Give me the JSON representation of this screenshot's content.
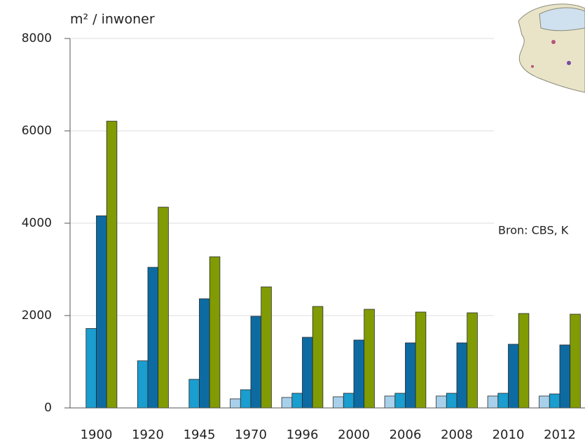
{
  "chart_data": {
    "type": "bar",
    "y_label": "m² / inwoner",
    "annotation": "Bron: CBS, K",
    "categories": [
      "1900",
      "1920",
      "1945",
      "1970",
      "1996",
      "2000",
      "2006",
      "2008",
      "2010",
      "2012"
    ],
    "series": [
      {
        "color": "#a8d0ea",
        "values": [
          null,
          null,
          null,
          197,
          227,
          242,
          258,
          258,
          258,
          258
        ]
      },
      {
        "color": "#1a9dcf",
        "values": [
          1720,
          1020,
          620,
          394,
          318,
          318,
          318,
          318,
          318,
          303
        ]
      },
      {
        "color": "#0d6ba2",
        "values": [
          4160,
          3045,
          2364,
          1985,
          1530,
          1470,
          1409,
          1409,
          1379,
          1364
        ]
      },
      {
        "color": "#819b04",
        "values": [
          6210,
          4348,
          3273,
          2621,
          2197,
          2136,
          2076,
          2060,
          2045,
          2030
        ]
      }
    ],
    "ylim": [
      0,
      8000
    ],
    "yticks": [
      0,
      2000,
      4000,
      6000,
      8000
    ],
    "grid": true
  }
}
